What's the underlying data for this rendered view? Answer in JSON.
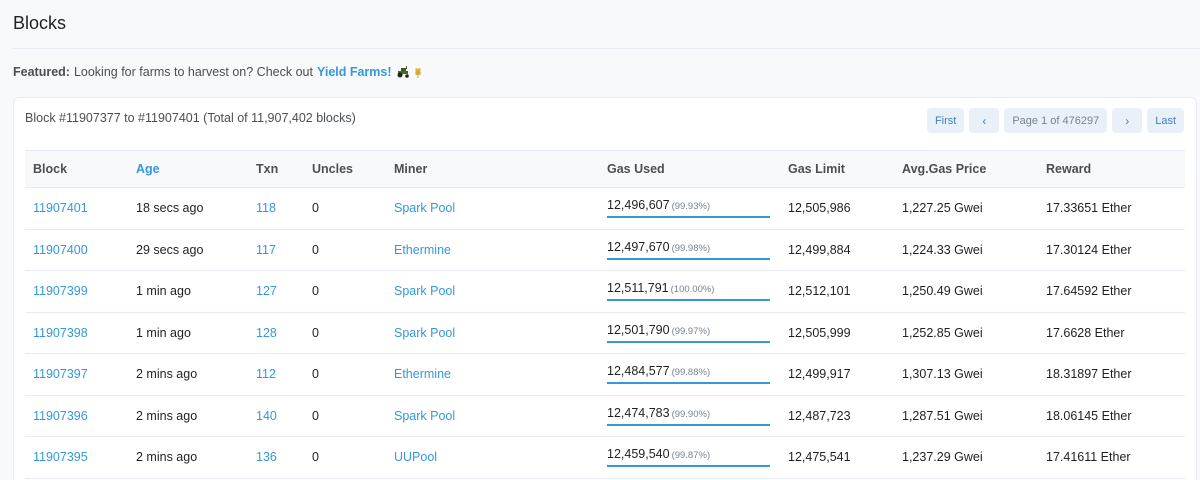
{
  "page": {
    "title": "Blocks"
  },
  "featured": {
    "label": "Featured:",
    "text": "Looking for farms to harvest on? Check out",
    "link": "Yield Farms!",
    "emoji": "🚜🌾"
  },
  "card": {
    "range_text": "Block #11907377 to #11907401 (Total of 11,907,402 blocks)",
    "pager": {
      "first": "First",
      "prev": "‹",
      "page_info": "Page 1 of 476297",
      "next": "›",
      "last": "Last"
    }
  },
  "table": {
    "headers": {
      "block": "Block",
      "age": "Age",
      "txn": "Txn",
      "uncles": "Uncles",
      "miner": "Miner",
      "gas_used": "Gas Used",
      "gas_limit": "Gas Limit",
      "avg_gas_price": "Avg.Gas Price",
      "reward": "Reward"
    },
    "rows": [
      {
        "block": "11907401",
        "age": "18 secs ago",
        "txn": "118",
        "uncles": "0",
        "miner": "Spark Pool",
        "gas_used": "12,496,607",
        "gas_pct": "(99.93%)",
        "gas_fill": 0.9993,
        "gas_limit": "12,505,986",
        "avg_gas_price": "1,227.25 Gwei",
        "reward": "17.33651 Ether"
      },
      {
        "block": "11907400",
        "age": "29 secs ago",
        "txn": "117",
        "uncles": "0",
        "miner": "Ethermine",
        "gas_used": "12,497,670",
        "gas_pct": "(99.98%)",
        "gas_fill": 0.9998,
        "gas_limit": "12,499,884",
        "avg_gas_price": "1,224.33 Gwei",
        "reward": "17.30124 Ether"
      },
      {
        "block": "11907399",
        "age": "1 min ago",
        "txn": "127",
        "uncles": "0",
        "miner": "Spark Pool",
        "gas_used": "12,511,791",
        "gas_pct": "(100.00%)",
        "gas_fill": 1.0,
        "gas_limit": "12,512,101",
        "avg_gas_price": "1,250.49 Gwei",
        "reward": "17.64592 Ether"
      },
      {
        "block": "11907398",
        "age": "1 min ago",
        "txn": "128",
        "uncles": "0",
        "miner": "Spark Pool",
        "gas_used": "12,501,790",
        "gas_pct": "(99.97%)",
        "gas_fill": 0.9997,
        "gas_limit": "12,505,999",
        "avg_gas_price": "1,252.85 Gwei",
        "reward": "17.6628 Ether"
      },
      {
        "block": "11907397",
        "age": "2 mins ago",
        "txn": "112",
        "uncles": "0",
        "miner": "Ethermine",
        "gas_used": "12,484,577",
        "gas_pct": "(99.88%)",
        "gas_fill": 0.9988,
        "gas_limit": "12,499,917",
        "avg_gas_price": "1,307.13 Gwei",
        "reward": "18.31897 Ether"
      },
      {
        "block": "11907396",
        "age": "2 mins ago",
        "txn": "140",
        "uncles": "0",
        "miner": "Spark Pool",
        "gas_used": "12,474,783",
        "gas_pct": "(99.90%)",
        "gas_fill": 0.999,
        "gas_limit": "12,487,723",
        "avg_gas_price": "1,287.51 Gwei",
        "reward": "18.06145 Ether"
      },
      {
        "block": "11907395",
        "age": "2 mins ago",
        "txn": "136",
        "uncles": "0",
        "miner": "UUPool",
        "gas_used": "12,459,540",
        "gas_pct": "(99.87%)",
        "gas_fill": 0.9987,
        "gas_limit": "12,475,541",
        "avg_gas_price": "1,237.29 Gwei",
        "reward": "17.41611 Ether"
      }
    ]
  },
  "colors": {
    "link": "#3498db",
    "text": "#1e2022",
    "muted": "#77838f",
    "border": "#e7eaf3"
  }
}
